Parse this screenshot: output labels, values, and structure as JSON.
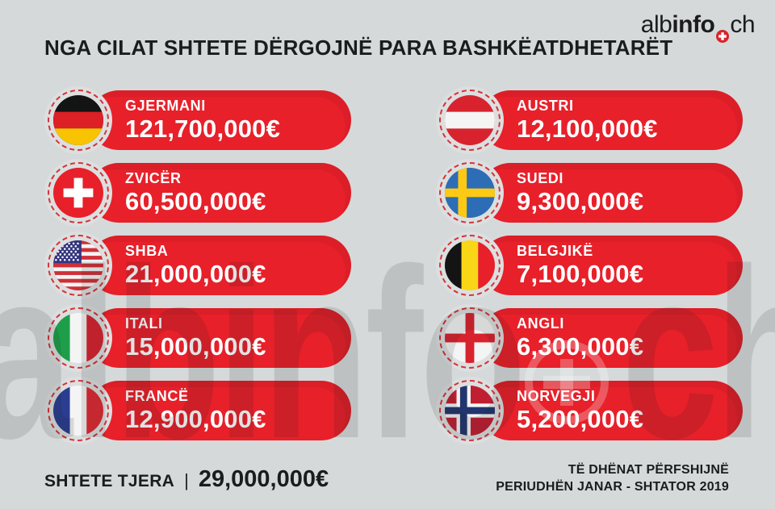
{
  "header": {
    "title": "NGA CILAT SHTETE DËRGOJNË PARA BASHKËATDHETARËT",
    "logo": {
      "part1": "alb",
      "part2": "info",
      "part3": "ch",
      "dot_icon": "swiss-cross-dot-icon"
    }
  },
  "countries": [
    {
      "name": "GJERMANI",
      "amount": "121,700,000€",
      "flag": "germany"
    },
    {
      "name": "ZVICËR",
      "amount": "60,500,000€",
      "flag": "switzerland"
    },
    {
      "name": "SHBA",
      "amount": "21,000,000€",
      "flag": "usa"
    },
    {
      "name": "ITALI",
      "amount": "15,000,000€",
      "flag": "italy"
    },
    {
      "name": "FRANCË",
      "amount": "12,900,000€",
      "flag": "france"
    },
    {
      "name": "AUSTRI",
      "amount": "12,100,000€",
      "flag": "austria"
    },
    {
      "name": "SUEDI",
      "amount": "9,300,000€",
      "flag": "sweden"
    },
    {
      "name": "BELGJIKË",
      "amount": "7,100,000€",
      "flag": "belgium"
    },
    {
      "name": "ANGLI",
      "amount": "6,300,000€",
      "flag": "england"
    },
    {
      "name": "NORVEGJI",
      "amount": "5,200,000€",
      "flag": "norway"
    }
  ],
  "footer": {
    "other_label": "SHTETE TJERA",
    "separator": "|",
    "other_amount": "29,000,000€",
    "note_line1": "TË DHËNAT PËRFSHIJNË",
    "note_line2": "PERIUDHËN JANAR - SHTATOR 2019"
  },
  "watermark": {
    "text1": "albinfo",
    "text2": "ch",
    "emblem": "swiss-cross-ring-icon"
  },
  "colors": {
    "background": "#d6d9da",
    "pill_red": "#e7202a",
    "dashed_ring_red": "#d6242c",
    "text_dark": "#1a1c1d",
    "flag_disc": "#dcdfdf"
  },
  "chart_data": {
    "type": "table",
    "title": "NGA CILAT SHTETE DËRGOJNË PARA BASHKËATDHETARËT",
    "categories": [
      "GJERMANI",
      "ZVICËR",
      "SHBA",
      "ITALI",
      "FRANCË",
      "AUSTRI",
      "SUEDI",
      "BELGJIKË",
      "ANGLI",
      "NORVEGJI",
      "SHTETE TJERA"
    ],
    "values": [
      121700000,
      60500000,
      21000000,
      15000000,
      12900000,
      12100000,
      9300000,
      7100000,
      6300000,
      5200000,
      29000000
    ],
    "unit": "EUR",
    "note": "TË DHËNAT PËRFSHIJNË PERIUDHËN JANAR - SHTATOR 2019",
    "source_brand": "albinfo.ch"
  }
}
